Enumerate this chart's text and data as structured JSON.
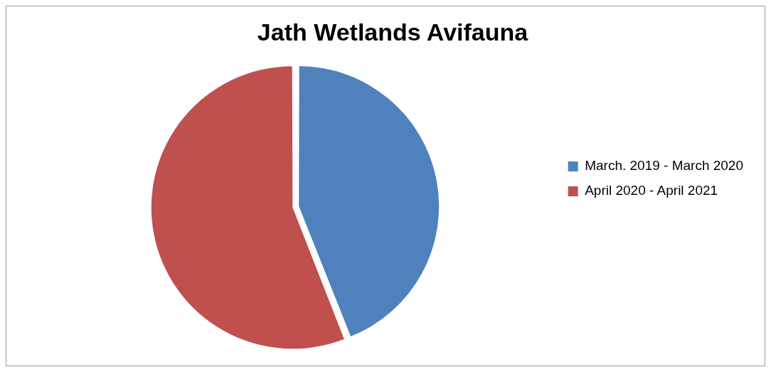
{
  "chart_data": {
    "type": "pie",
    "title": "Jath Wetlands Avifauna",
    "categories": [
      "March. 2019 - March 2020",
      "April 2020 - April 2021"
    ],
    "values": [
      44,
      56
    ],
    "colors": [
      "#4f81bd",
      "#c0504d"
    ],
    "legend": "right"
  }
}
